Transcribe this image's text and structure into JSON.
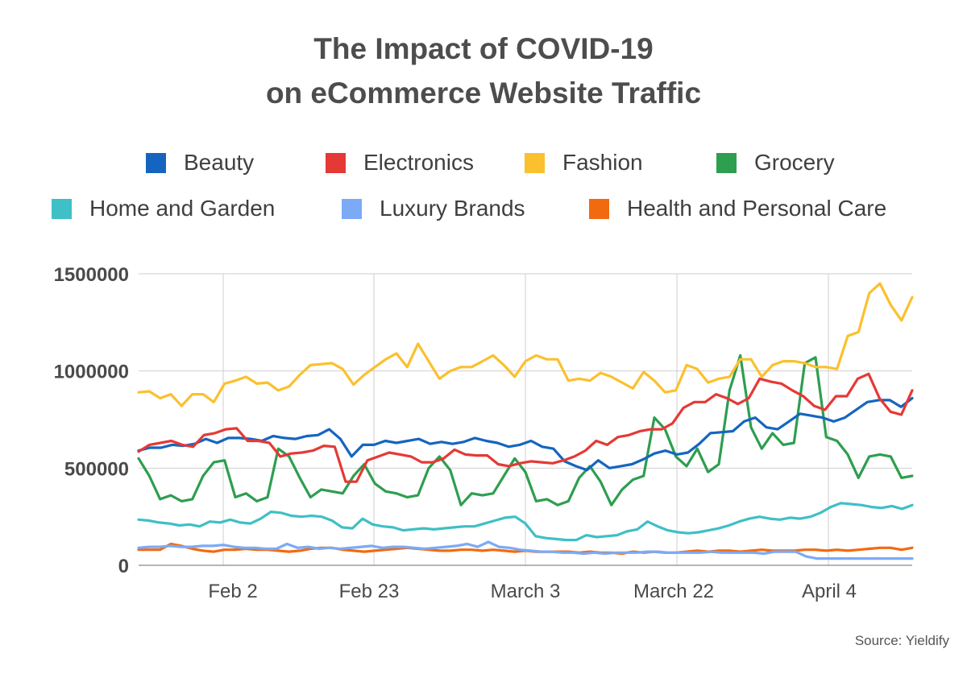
{
  "title_line1": "The Impact of COVID-19",
  "title_line2": "on eCommerce Website Traffic",
  "source": "Source: Yieldify",
  "chart_data": {
    "type": "line",
    "title": "The Impact of COVID-19 on eCommerce Website Traffic",
    "xlabel": "",
    "ylabel": "",
    "x_tick_labels": [
      "Feb 2",
      "Feb 23",
      "March 3",
      "March 22",
      "April 4"
    ],
    "y_ticks": [
      0,
      500000,
      1000000,
      1500000
    ],
    "y_tick_labels": [
      "0",
      "500000",
      "1000000",
      "1500000"
    ],
    "ylim": [
      0,
      1500000
    ],
    "grid": true,
    "legend_position": "top",
    "series": [
      {
        "name": "Beauty",
        "color": "#1565c0",
        "values": [
          590000,
          605000,
          605000,
          620000,
          615000,
          625000,
          650000,
          630000,
          655000,
          655000,
          650000,
          640000,
          665000,
          655000,
          650000,
          665000,
          670000,
          700000,
          650000,
          560000,
          620000,
          620000,
          640000,
          630000,
          640000,
          650000,
          625000,
          635000,
          625000,
          635000,
          655000,
          640000,
          630000,
          610000,
          620000,
          640000,
          610000,
          600000,
          535000,
          510000,
          490000,
          540000,
          500000,
          510000,
          520000,
          545000,
          575000,
          590000,
          570000,
          580000,
          625000,
          680000,
          685000,
          690000,
          740000,
          760000,
          710000,
          700000,
          740000,
          780000,
          770000,
          760000,
          740000,
          760000,
          800000,
          840000,
          850000,
          850000,
          815000,
          860000
        ]
      },
      {
        "name": "Electronics",
        "color": "#e53935",
        "values": [
          585000,
          620000,
          630000,
          640000,
          620000,
          610000,
          670000,
          680000,
          700000,
          705000,
          640000,
          640000,
          630000,
          560000,
          575000,
          580000,
          590000,
          615000,
          610000,
          430000,
          430000,
          540000,
          560000,
          580000,
          570000,
          560000,
          530000,
          530000,
          550000,
          595000,
          570000,
          565000,
          565000,
          520000,
          510000,
          525000,
          535000,
          530000,
          525000,
          540000,
          560000,
          590000,
          640000,
          620000,
          660000,
          670000,
          690000,
          700000,
          700000,
          730000,
          810000,
          840000,
          840000,
          880000,
          860000,
          830000,
          860000,
          960000,
          945000,
          935000,
          900000,
          870000,
          820000,
          800000,
          870000,
          870000,
          960000,
          985000,
          860000,
          790000,
          775000,
          900000
        ]
      },
      {
        "name": "Fashion",
        "color": "#fbc02d",
        "values": [
          890000,
          895000,
          860000,
          880000,
          820000,
          880000,
          880000,
          840000,
          935000,
          950000,
          970000,
          935000,
          940000,
          900000,
          920000,
          980000,
          1030000,
          1035000,
          1040000,
          1010000,
          930000,
          980000,
          1020000,
          1060000,
          1090000,
          1020000,
          1140000,
          1050000,
          960000,
          1000000,
          1020000,
          1020000,
          1050000,
          1080000,
          1030000,
          970000,
          1050000,
          1080000,
          1060000,
          1060000,
          950000,
          960000,
          950000,
          990000,
          970000,
          940000,
          910000,
          995000,
          950000,
          890000,
          900000,
          1030000,
          1010000,
          940000,
          960000,
          970000,
          1060000,
          1060000,
          970000,
          1030000,
          1050000,
          1050000,
          1040000,
          1020000,
          1020000,
          1010000,
          1180000,
          1200000,
          1400000,
          1450000,
          1340000,
          1260000,
          1380000
        ]
      },
      {
        "name": "Grocery",
        "color": "#2e9e4f",
        "values": [
          550000,
          460000,
          340000,
          360000,
          330000,
          340000,
          460000,
          530000,
          540000,
          350000,
          370000,
          330000,
          350000,
          600000,
          560000,
          450000,
          350000,
          390000,
          380000,
          370000,
          460000,
          520000,
          420000,
          380000,
          370000,
          350000,
          360000,
          500000,
          560000,
          490000,
          310000,
          370000,
          360000,
          370000,
          460000,
          550000,
          480000,
          330000,
          340000,
          310000,
          330000,
          450000,
          510000,
          430000,
          310000,
          390000,
          440000,
          460000,
          760000,
          700000,
          560000,
          510000,
          600000,
          480000,
          520000,
          900000,
          1080000,
          710000,
          600000,
          680000,
          620000,
          630000,
          1040000,
          1070000,
          660000,
          640000,
          570000,
          450000,
          560000,
          570000,
          560000,
          450000,
          460000
        ]
      },
      {
        "name": "Home and Garden",
        "color": "#3fbfc6",
        "values": [
          235000,
          230000,
          220000,
          215000,
          205000,
          210000,
          200000,
          225000,
          220000,
          235000,
          220000,
          215000,
          240000,
          275000,
          270000,
          255000,
          250000,
          255000,
          250000,
          230000,
          195000,
          190000,
          240000,
          210000,
          200000,
          195000,
          180000,
          185000,
          190000,
          185000,
          190000,
          195000,
          200000,
          200000,
          215000,
          230000,
          245000,
          250000,
          215000,
          150000,
          140000,
          135000,
          130000,
          130000,
          155000,
          145000,
          150000,
          155000,
          175000,
          185000,
          225000,
          200000,
          180000,
          170000,
          165000,
          170000,
          180000,
          190000,
          205000,
          225000,
          240000,
          250000,
          240000,
          235000,
          245000,
          240000,
          250000,
          270000,
          300000,
          320000,
          315000,
          310000,
          300000,
          295000,
          305000,
          290000,
          310000
        ]
      },
      {
        "name": "Luxury Brands",
        "color": "#7baaf7",
        "values": [
          90000,
          95000,
          95000,
          100000,
          95000,
          95000,
          100000,
          100000,
          105000,
          95000,
          90000,
          90000,
          85000,
          85000,
          110000,
          90000,
          95000,
          85000,
          90000,
          85000,
          90000,
          95000,
          100000,
          90000,
          95000,
          95000,
          90000,
          85000,
          90000,
          95000,
          100000,
          110000,
          95000,
          120000,
          95000,
          90000,
          80000,
          75000,
          70000,
          70000,
          65000,
          65000,
          60000,
          65000,
          60000,
          65000,
          65000,
          65000,
          70000,
          70000,
          65000,
          65000,
          65000,
          65000,
          70000,
          65000,
          65000,
          65000,
          65000,
          60000,
          70000,
          70000,
          70000,
          45000,
          35000,
          35000,
          35000,
          35000,
          35000,
          35000,
          35000,
          35000,
          35000,
          35000
        ]
      },
      {
        "name": "Health and Personal Care",
        "color": "#f26a10",
        "values": [
          80000,
          80000,
          80000,
          110000,
          100000,
          85000,
          75000,
          70000,
          80000,
          80000,
          85000,
          80000,
          80000,
          75000,
          70000,
          75000,
          85000,
          90000,
          90000,
          80000,
          75000,
          70000,
          75000,
          80000,
          85000,
          90000,
          85000,
          80000,
          75000,
          75000,
          80000,
          80000,
          75000,
          80000,
          75000,
          70000,
          75000,
          70000,
          70000,
          70000,
          70000,
          65000,
          70000,
          65000,
          65000,
          60000,
          70000,
          65000,
          70000,
          65000,
          65000,
          70000,
          75000,
          70000,
          75000,
          75000,
          70000,
          75000,
          80000,
          75000,
          75000,
          75000,
          80000,
          80000,
          75000,
          80000,
          75000,
          80000,
          85000,
          90000,
          90000,
          80000,
          90000
        ]
      }
    ]
  }
}
